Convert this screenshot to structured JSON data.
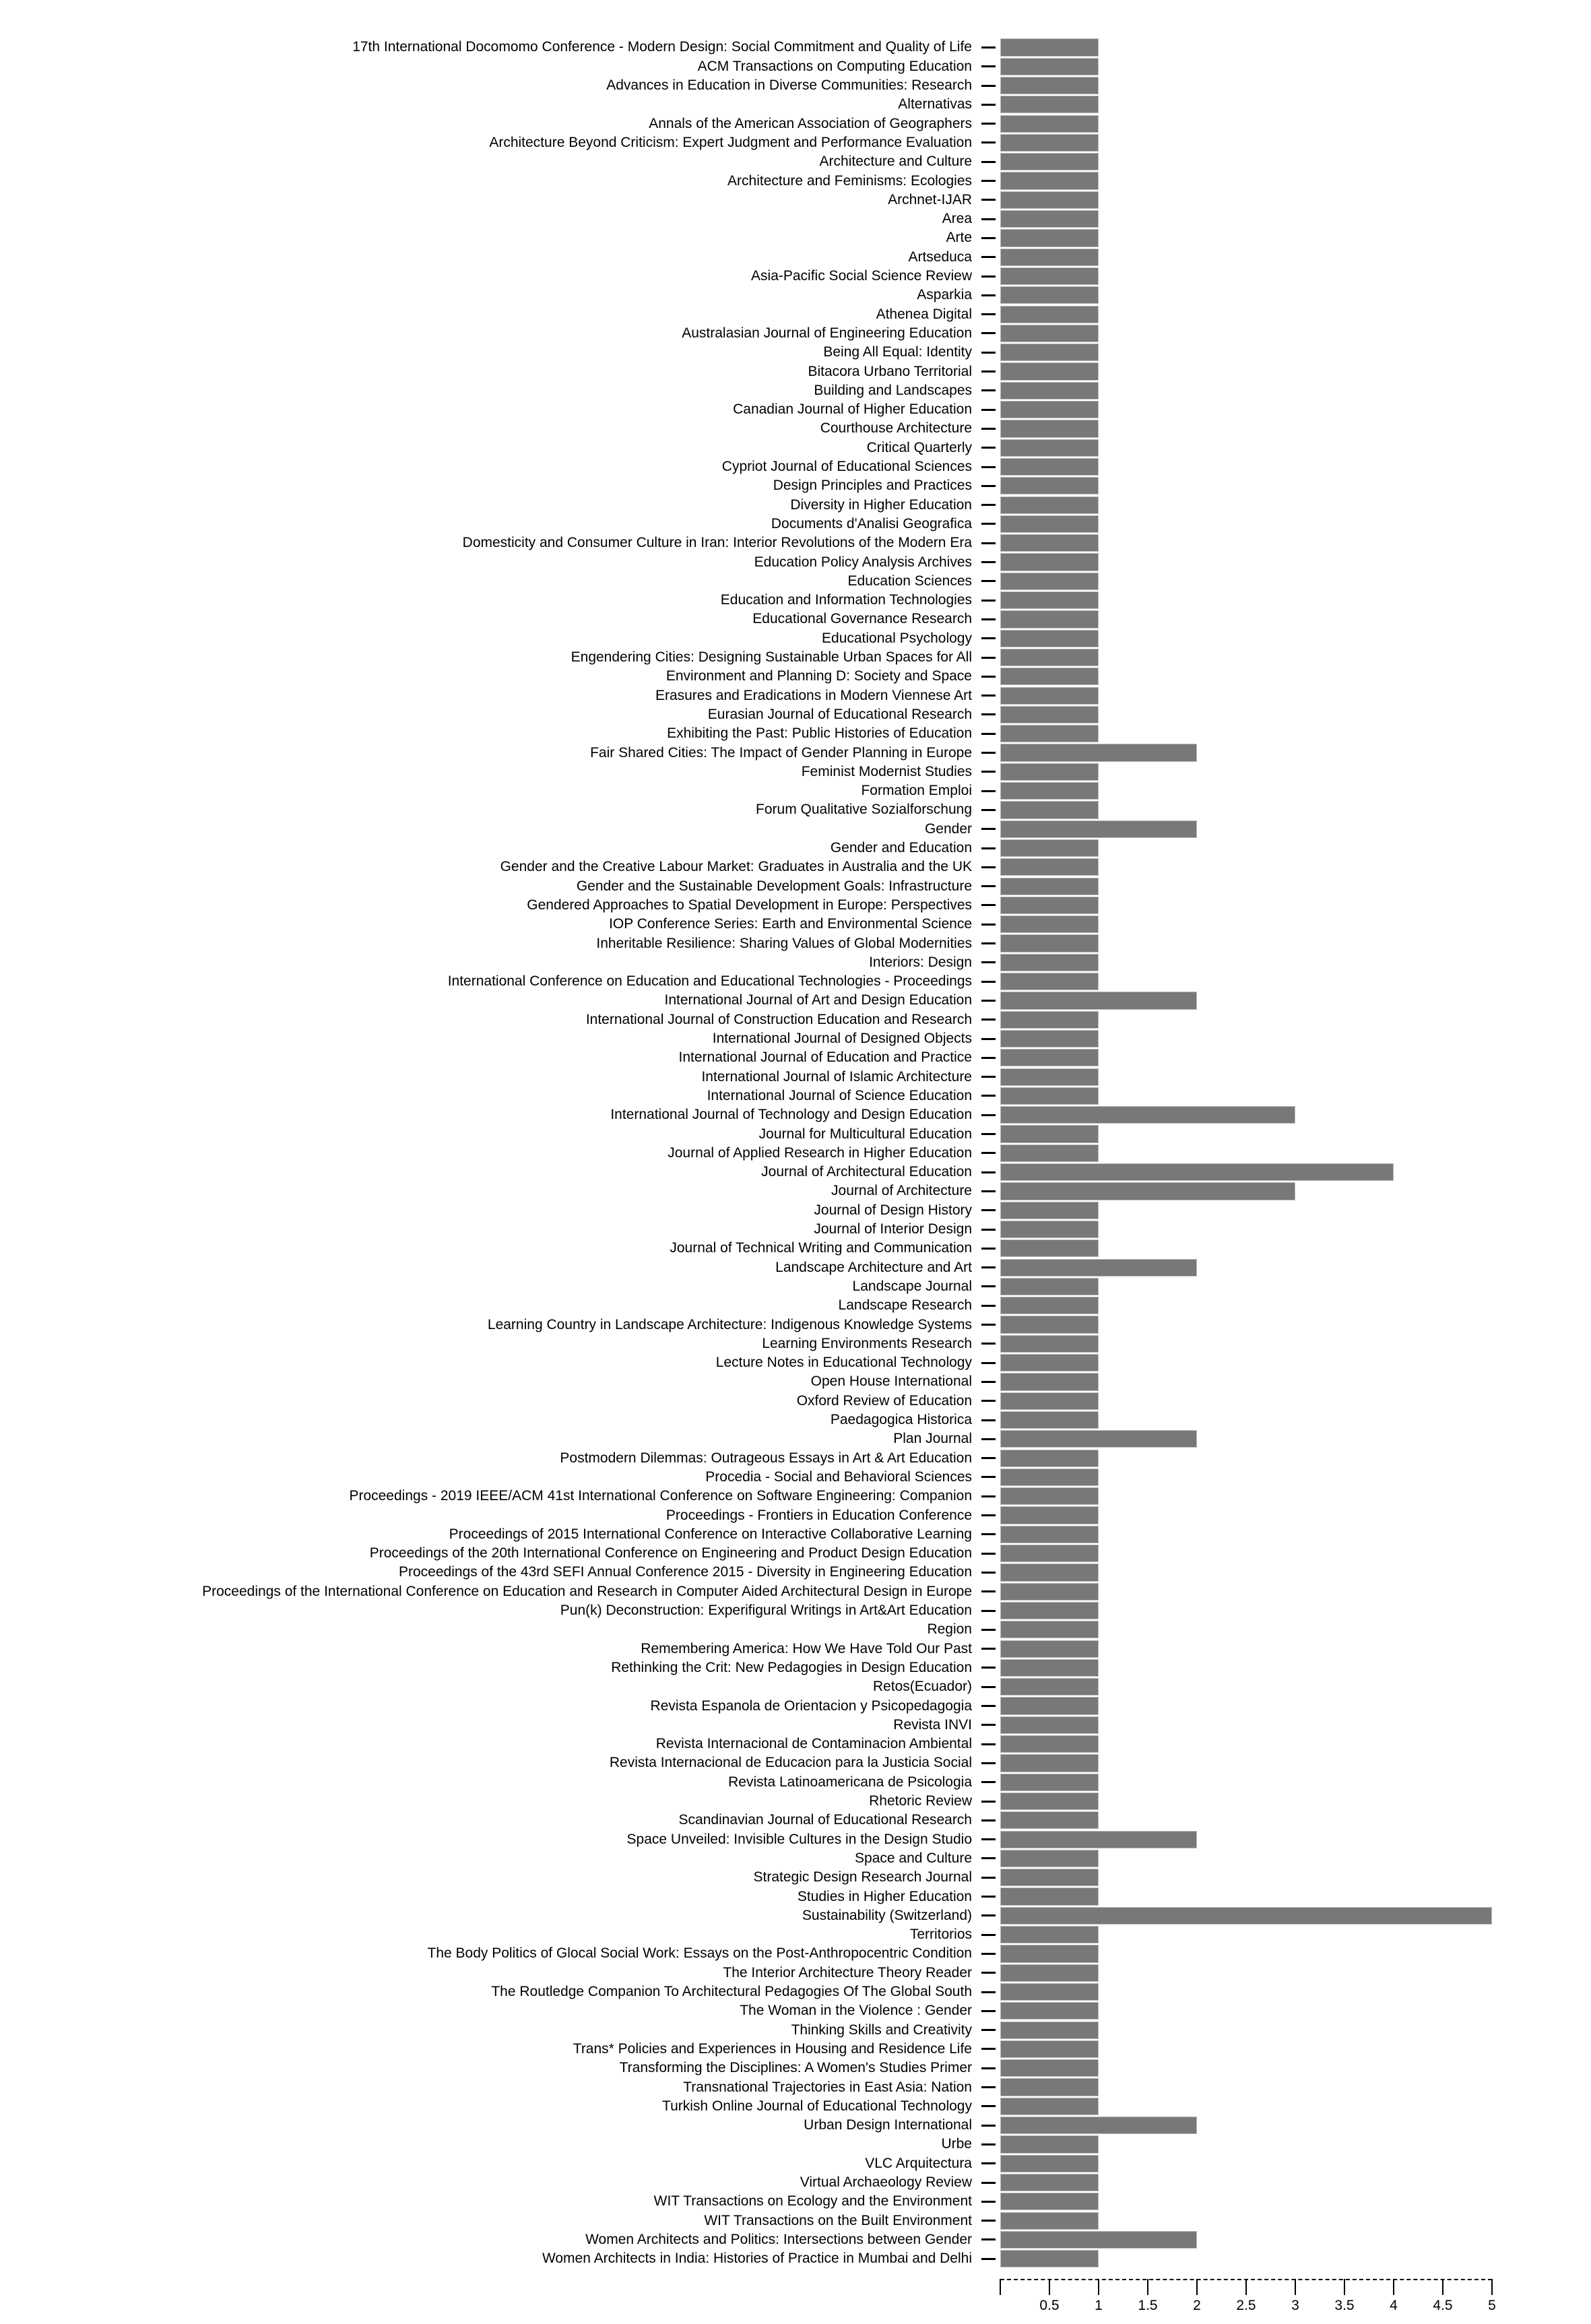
{
  "chart_data": {
    "type": "bar",
    "orientation": "horizontal",
    "title": "",
    "xlabel": "",
    "ylabel": "",
    "xlim": [
      0,
      5
    ],
    "x_ticks": [
      0.5,
      1,
      1.5,
      2,
      2.5,
      3,
      3.5,
      4,
      4.5,
      5
    ],
    "x_tick_labels": [
      "0.5",
      "1",
      "1.5",
      "2",
      "2.5",
      "3",
      "3.5",
      "4",
      "4.5",
      "5"
    ],
    "grid": false,
    "legend": null,
    "bar_color": "#787878",
    "categories": [
      "17th International Docomomo Conference - Modern Design: Social Commitment and Quality of Life",
      "ACM Transactions on Computing Education",
      "Advances in Education in Diverse Communities: Research",
      "Alternativas",
      "Annals of the American Association of Geographers",
      "Architecture Beyond Criticism: Expert Judgment and Performance Evaluation",
      "Architecture and Culture",
      "Architecture and Feminisms: Ecologies",
      "Archnet-IJAR",
      "Area",
      "Arte",
      "Artseduca",
      "Asia-Pacific Social Science Review",
      "Asparkia",
      "Athenea Digital",
      "Australasian Journal of Engineering Education",
      "Being All Equal: Identity",
      "Bitacora Urbano Territorial",
      "Building and Landscapes",
      "Canadian Journal of Higher Education",
      "Courthouse Architecture",
      "Critical Quarterly",
      "Cypriot Journal of Educational Sciences",
      "Design Principles and Practices",
      "Diversity in Higher Education",
      "Documents d'Analisi Geografica",
      "Domesticity and Consumer Culture in Iran: Interior Revolutions of the Modern Era",
      "Education Policy Analysis Archives",
      "Education Sciences",
      "Education and Information Technologies",
      "Educational Governance Research",
      "Educational Psychology",
      "Engendering Cities: Designing Sustainable Urban Spaces for All",
      "Environment and Planning D: Society and Space",
      "Erasures and Eradications in Modern Viennese Art",
      "Eurasian Journal of Educational Research",
      "Exhibiting the Past: Public Histories of Education",
      "Fair Shared Cities: The Impact of Gender Planning in Europe",
      "Feminist Modernist Studies",
      "Formation Emploi",
      "Forum Qualitative Sozialforschung",
      "Gender",
      "Gender and Education",
      "Gender and the Creative Labour Market: Graduates in Australia and the UK",
      "Gender and the Sustainable Development Goals: Infrastructure",
      "Gendered Approaches to Spatial Development in Europe: Perspectives",
      "IOP Conference Series: Earth and Environmental Science",
      "Inheritable Resilience: Sharing Values of Global Modernities",
      "Interiors: Design",
      "International Conference on Education and Educational Technologies - Proceedings",
      "International Journal of Art and Design Education",
      "International Journal of Construction Education and Research",
      "International Journal of Designed Objects",
      "International Journal of Education and Practice",
      "International Journal of Islamic Architecture",
      "International Journal of Science Education",
      "International Journal of Technology and Design Education",
      "Journal for Multicultural Education",
      "Journal of Applied Research in Higher Education",
      "Journal of Architectural Education",
      "Journal of Architecture",
      "Journal of Design History",
      "Journal of Interior Design",
      "Journal of Technical Writing and Communication",
      "Landscape Architecture and Art",
      "Landscape Journal",
      "Landscape Research",
      "Learning Country in Landscape Architecture: Indigenous Knowledge Systems",
      "Learning Environments Research",
      "Lecture Notes in Educational Technology",
      "Open House International",
      "Oxford Review of Education",
      "Paedagogica Historica",
      "Plan Journal",
      "Postmodern Dilemmas: Outrageous Essays in Art & Art Education",
      "Procedia - Social and Behavioral Sciences",
      "Proceedings - 2019 IEEE/ACM 41st International Conference on Software Engineering: Companion",
      "Proceedings - Frontiers in Education Conference",
      "Proceedings of 2015 International Conference on Interactive Collaborative Learning",
      "Proceedings of the 20th International Conference on Engineering and Product Design Education",
      "Proceedings of the 43rd SEFI Annual Conference 2015 - Diversity in Engineering Education",
      "Proceedings of the International Conference on Education and Research in Computer Aided Architectural Design in Europe",
      "Pun(k) Deconstruction: Experifigural Writings in Art&Art Education",
      "Region",
      "Remembering America: How We Have Told Our Past",
      "Rethinking the Crit: New Pedagogies in Design Education",
      "Retos(Ecuador)",
      "Revista Espanola de Orientacion y Psicopedagogia",
      "Revista INVI",
      "Revista Internacional de Contaminacion Ambiental",
      "Revista Internacional de Educacion para la Justicia Social",
      "Revista Latinoamericana de Psicologia",
      "Rhetoric Review",
      "Scandinavian Journal of Educational Research",
      "Space Unveiled: Invisible Cultures in the Design Studio",
      "Space and Culture",
      "Strategic Design Research Journal",
      "Studies in Higher Education",
      "Sustainability (Switzerland)",
      "Territorios",
      "The Body Politics of Glocal Social Work: Essays on the Post-Anthropocentric Condition",
      "The Interior Architecture Theory Reader",
      "The Routledge Companion To Architectural Pedagogies Of The Global South",
      "The Woman in the Violence : Gender",
      "Thinking Skills and Creativity",
      "Trans* Policies and Experiences in Housing and Residence Life",
      "Transforming the Disciplines: A Women's Studies Primer",
      "Transnational Trajectories in East Asia: Nation",
      "Turkish Online Journal of Educational Technology",
      "Urban Design International",
      "Urbe",
      "VLC Arquitectura",
      "Virtual Archaeology Review",
      "WIT Transactions on Ecology and the Environment",
      "WIT Transactions on the Built Environment",
      "Women Architects and Politics: Intersections between Gender",
      "Women Architects in India: Histories of Practice in Mumbai and Delhi"
    ],
    "values": [
      1,
      1,
      1,
      1,
      1,
      1,
      1,
      1,
      1,
      1,
      1,
      1,
      1,
      1,
      1,
      1,
      1,
      1,
      1,
      1,
      1,
      1,
      1,
      1,
      1,
      1,
      1,
      1,
      1,
      1,
      1,
      1,
      1,
      1,
      1,
      1,
      1,
      2,
      1,
      1,
      1,
      2,
      1,
      1,
      1,
      1,
      1,
      1,
      1,
      1,
      2,
      1,
      1,
      1,
      1,
      1,
      3,
      1,
      1,
      4,
      3,
      1,
      1,
      1,
      2,
      1,
      1,
      1,
      1,
      1,
      1,
      1,
      1,
      2,
      1,
      1,
      1,
      1,
      1,
      1,
      1,
      1,
      1,
      1,
      1,
      1,
      1,
      1,
      1,
      1,
      1,
      1,
      1,
      1,
      2,
      1,
      1,
      1,
      5,
      1,
      1,
      1,
      1,
      1,
      1,
      1,
      1,
      1,
      1,
      2,
      1,
      1,
      1,
      1,
      1,
      2,
      1
    ]
  }
}
